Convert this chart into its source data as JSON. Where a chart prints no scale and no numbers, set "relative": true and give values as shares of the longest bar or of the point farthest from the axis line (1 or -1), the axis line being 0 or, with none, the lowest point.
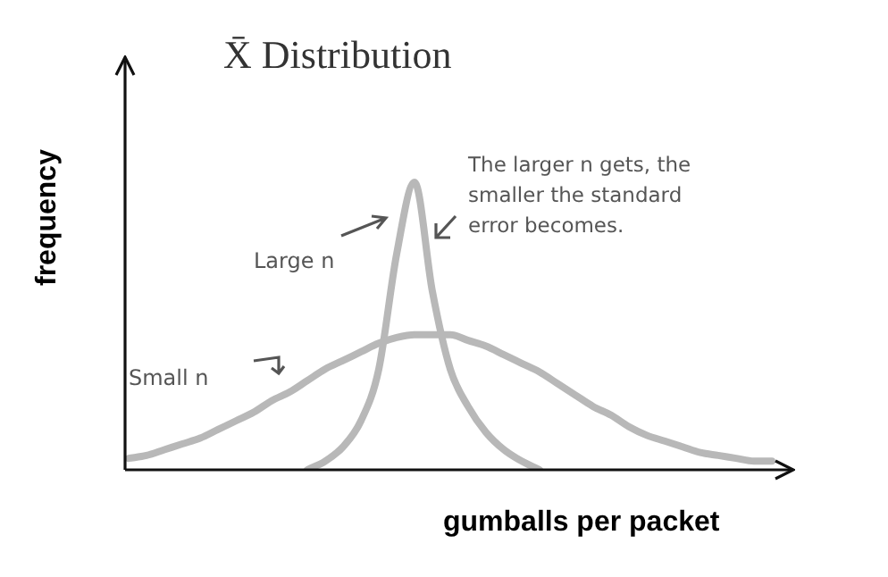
{
  "chart_data": {
    "type": "line",
    "title": "X̄ Distribution",
    "xlabel": "gumballs per packet",
    "ylabel": "frequency",
    "relative": true,
    "legend": false,
    "marker": "none",
    "annotations": [
      "The larger n gets, the smaller the standard error becomes."
    ],
    "categories": [
      null,
      null,
      null,
      null,
      null,
      null,
      null,
      null,
      null,
      null,
      null,
      null,
      null,
      null,
      null,
      null,
      null,
      null,
      null,
      null,
      null,
      null,
      null,
      null,
      null,
      null,
      null,
      null,
      null,
      null,
      null,
      null,
      null,
      null,
      null,
      null,
      null
    ],
    "series": [
      {
        "name": "Small n",
        "color": "#b8b8b8",
        "values": [
          0.04,
          0.05,
          0.07,
          0.09,
          0.11,
          0.14,
          0.17,
          0.2,
          0.24,
          0.27,
          0.31,
          0.35,
          0.38,
          0.41,
          0.44,
          0.46,
          0.47,
          0.47,
          0.47,
          0.45,
          0.43,
          0.4,
          0.37,
          0.34,
          0.3,
          0.26,
          0.22,
          0.19,
          0.15,
          0.12,
          0.1,
          0.08,
          0.06,
          0.05,
          0.04,
          0.03,
          0.03
        ]
      },
      {
        "name": "Large n",
        "color": "#b8b8b8",
        "values": [
          null,
          null,
          null,
          null,
          null,
          null,
          null,
          null,
          null,
          null,
          0,
          0.03,
          0.08,
          0.17,
          0.35,
          0.75,
          1,
          0.62,
          0.35,
          0.22,
          0.13,
          0.07,
          0.03,
          0,
          null,
          null,
          null,
          null,
          null,
          null,
          null,
          null,
          null,
          null,
          null,
          null,
          null
        ]
      }
    ]
  }
}
